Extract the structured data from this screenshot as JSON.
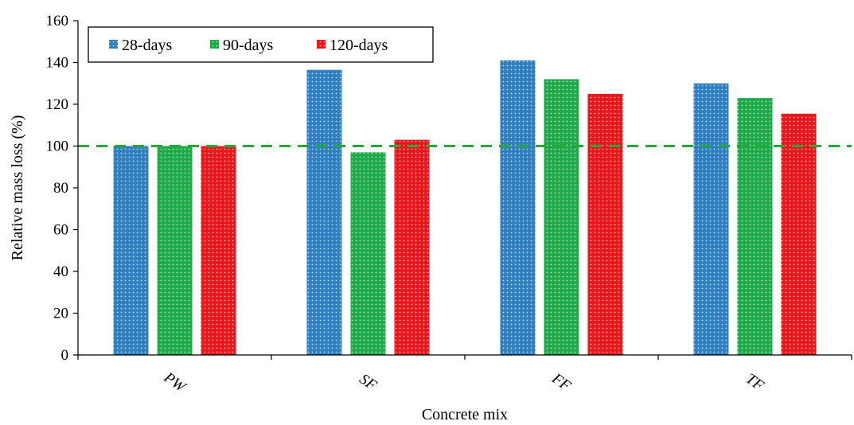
{
  "chart_data": {
    "type": "bar",
    "title": "",
    "xlabel": "Concrete mix",
    "ylabel": "Relative mass loss (%)",
    "categories": [
      "PW",
      "SF",
      "FF",
      "TF"
    ],
    "ylim": [
      0,
      160
    ],
    "yticks": [
      "0",
      "20",
      "40",
      "60",
      "80",
      "100",
      "120",
      "140",
      "160"
    ],
    "grid": false,
    "legend_position": "top-left",
    "series": [
      {
        "name": "28-days",
        "values": [
          100,
          136.5,
          141,
          130
        ],
        "color": "#2f7fc1"
      },
      {
        "name": "90-days",
        "values": [
          100,
          97,
          132,
          123
        ],
        "color": "#1faa4a"
      },
      {
        "name": "120-days",
        "values": [
          100,
          103,
          125,
          115.5
        ],
        "color": "#e8171b"
      }
    ],
    "reference_line": {
      "value": 100,
      "style": "dashed",
      "color": "#22aa33"
    }
  }
}
